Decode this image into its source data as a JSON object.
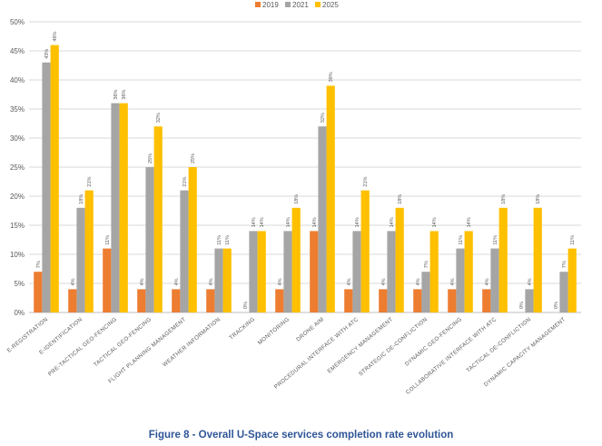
{
  "caption": "Figure 8 - Overall U-Space services completion rate evolution",
  "chart_data": {
    "type": "bar",
    "title": "",
    "xlabel": "",
    "ylabel": "",
    "ylim": [
      0,
      50
    ],
    "yticks": [
      "0%",
      "5%",
      "10%",
      "15%",
      "20%",
      "25%",
      "30%",
      "35%",
      "40%",
      "45%",
      "50%"
    ],
    "grid": true,
    "legend_position": "top",
    "categories": [
      "E-REGISTRATION",
      "E-IDENTIFICATION",
      "PRE-TACTICAL GEO-FENCING",
      "TACTICAL GEO-FENCING",
      "FLIGHT PLANNING MANAGEMENT",
      "WEATHER INFORMATION",
      "TRACKING",
      "MONITORING",
      "DRONE AIM",
      "PROCEDURAL INTERFACE WITH ATC",
      "EMERGENCY MANAGEMENT",
      "STRATEGIC DE-CONFLICTION",
      "DYNAMIC GEO-FENCING",
      "COLLABORATIVE INTERFACE WITH ATC",
      "TACTICAL DE-CONFLICTION",
      "DYNAMIC CAPACITY MANAGEMENT"
    ],
    "series": [
      {
        "name": "2019",
        "color": "#ed7d31",
        "values": [
          7,
          4,
          11,
          4,
          4,
          4,
          0,
          4,
          14,
          4,
          4,
          4,
          4,
          4,
          0,
          0
        ],
        "labels": [
          "7%",
          "4%",
          "11%",
          "4%",
          "4%",
          "4%",
          "0%",
          "4%",
          "14%",
          "4%",
          "4%",
          "4%",
          "4%",
          "4%",
          "0%",
          "0%"
        ]
      },
      {
        "name": "2021",
        "color": "#a5a5a5",
        "values": [
          43,
          18,
          36,
          25,
          21,
          11,
          14,
          14,
          32,
          14,
          14,
          7,
          11,
          11,
          4,
          7
        ],
        "labels": [
          "43%",
          "18%",
          "36%",
          "25%",
          "21%",
          "11%",
          "14%",
          "14%",
          "32%",
          "14%",
          "14%",
          "7%",
          "11%",
          "11%",
          "4%",
          "7%"
        ]
      },
      {
        "name": "2025",
        "color": "#ffc000",
        "values": [
          46,
          21,
          36,
          32,
          25,
          11,
          14,
          18,
          39,
          21,
          18,
          14,
          14,
          18,
          18,
          11
        ],
        "labels": [
          "46%",
          "21%",
          "36%",
          "32%",
          "25%",
          "11%",
          "14%",
          "18%",
          "39%",
          "21%",
          "18%",
          "14%",
          "14%",
          "18%",
          "18%",
          "11%"
        ]
      }
    ]
  }
}
